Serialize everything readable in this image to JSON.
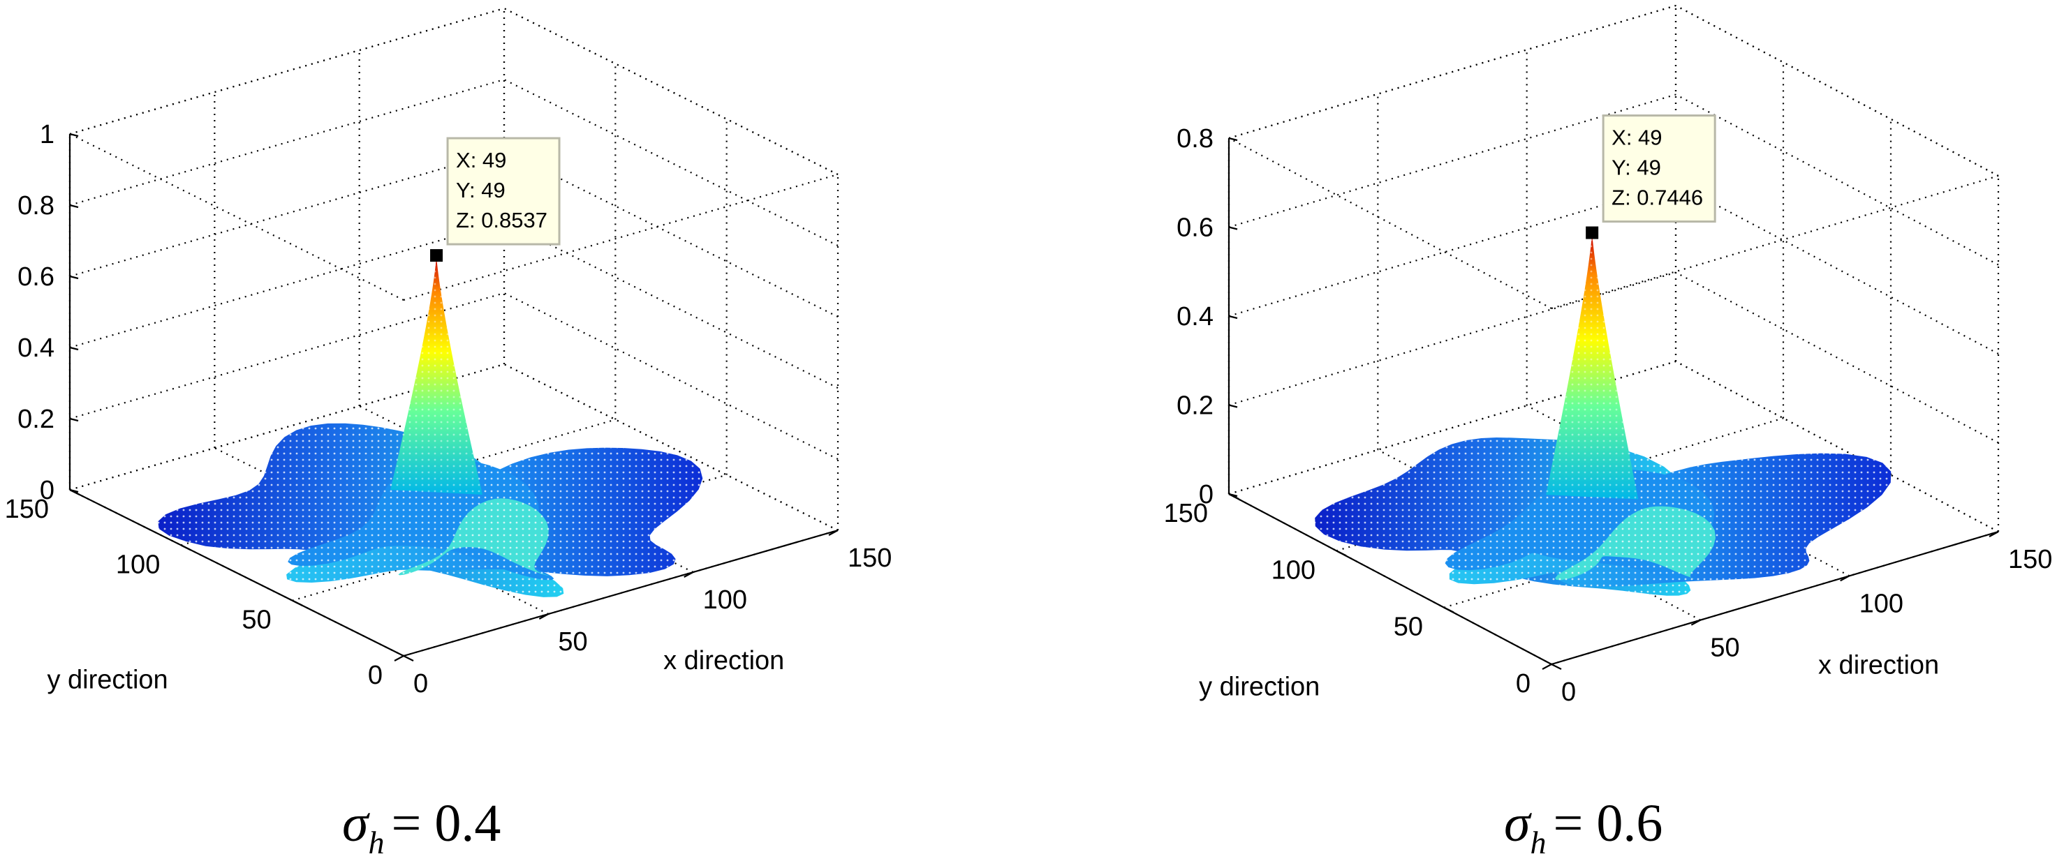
{
  "chart_data": [
    {
      "type": "surface",
      "xlabel": "x direction",
      "ylabel": "y direction",
      "zlabel": "",
      "xlim": [
        0,
        150
      ],
      "ylim": [
        0,
        150
      ],
      "zlim": [
        0,
        1
      ],
      "xticks": [
        "0",
        "50",
        "100",
        "150"
      ],
      "yticks": [
        "0",
        "50",
        "100",
        "150"
      ],
      "zticks": [
        "0",
        "0.2",
        "0.4",
        "0.6",
        "0.8",
        "1"
      ],
      "grid": true,
      "colormap": "jet",
      "peak": {
        "x": 49,
        "y": 49,
        "z": 0.8537
      },
      "datatip": {
        "x": "X: 49",
        "y": "Y: 49",
        "z": "Z: 0.8537"
      },
      "caption": {
        "symbol": "σ",
        "subscript": "h",
        "value": "= 0.4"
      }
    },
    {
      "type": "surface",
      "xlabel": "x direction",
      "ylabel": "y direction",
      "zlabel": "",
      "xlim": [
        0,
        150
      ],
      "ylim": [
        0,
        150
      ],
      "zlim": [
        0,
        0.8
      ],
      "xticks": [
        "0",
        "50",
        "100",
        "150"
      ],
      "yticks": [
        "0",
        "50",
        "100",
        "150"
      ],
      "zticks": [
        "0",
        "0.2",
        "0.4",
        "0.6",
        "0.8"
      ],
      "grid": true,
      "colormap": "jet",
      "peak": {
        "x": 49,
        "y": 49,
        "z": 0.7446
      },
      "datatip": {
        "x": "X: 49",
        "y": "Y: 49",
        "z": "Z: 0.7446"
      },
      "caption": {
        "symbol": "σ",
        "subscript": "h",
        "value": "= 0.6"
      }
    }
  ]
}
